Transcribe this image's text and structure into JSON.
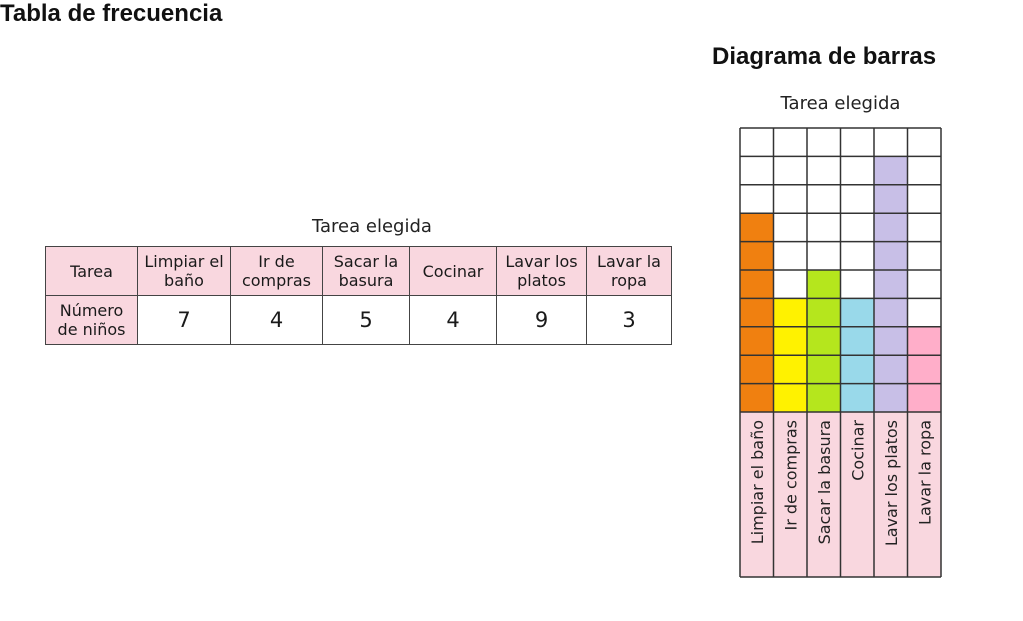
{
  "table_section": {
    "heading": "Tabla de frecuencia",
    "caption": "Tarea elegida",
    "header_label": "Tarea",
    "value_label": "Número de niños",
    "columns": [
      {
        "label": "Limpiar el baño",
        "value": "7"
      },
      {
        "label": "Ir de compras",
        "value": "4"
      },
      {
        "label": "Sacar la basura",
        "value": "5"
      },
      {
        "label": "Cocinar",
        "value": "4"
      },
      {
        "label": "Lavar los platos",
        "value": "9"
      },
      {
        "label": "Lavar la ropa",
        "value": "3"
      }
    ]
  },
  "chart_section": {
    "heading": "Diagrama de barras"
  },
  "chart_data": {
    "type": "bar",
    "orientation": "vertical",
    "title": "Tarea elegida",
    "categories": [
      "Limpiar el baño",
      "Ir de compras",
      "Sacar la basura",
      "Cocinar",
      "Lavar los platos",
      "Lavar la ropa"
    ],
    "values": [
      7,
      4,
      5,
      4,
      9,
      3
    ],
    "colors": [
      "#f08010",
      "#fff200",
      "#b5e61d",
      "#99d9ea",
      "#c8bfe7",
      "#ffaec9"
    ],
    "label_color": "#f9d7df",
    "ylim": [
      0,
      10
    ],
    "grid": true,
    "xlabel": "",
    "ylabel": ""
  }
}
